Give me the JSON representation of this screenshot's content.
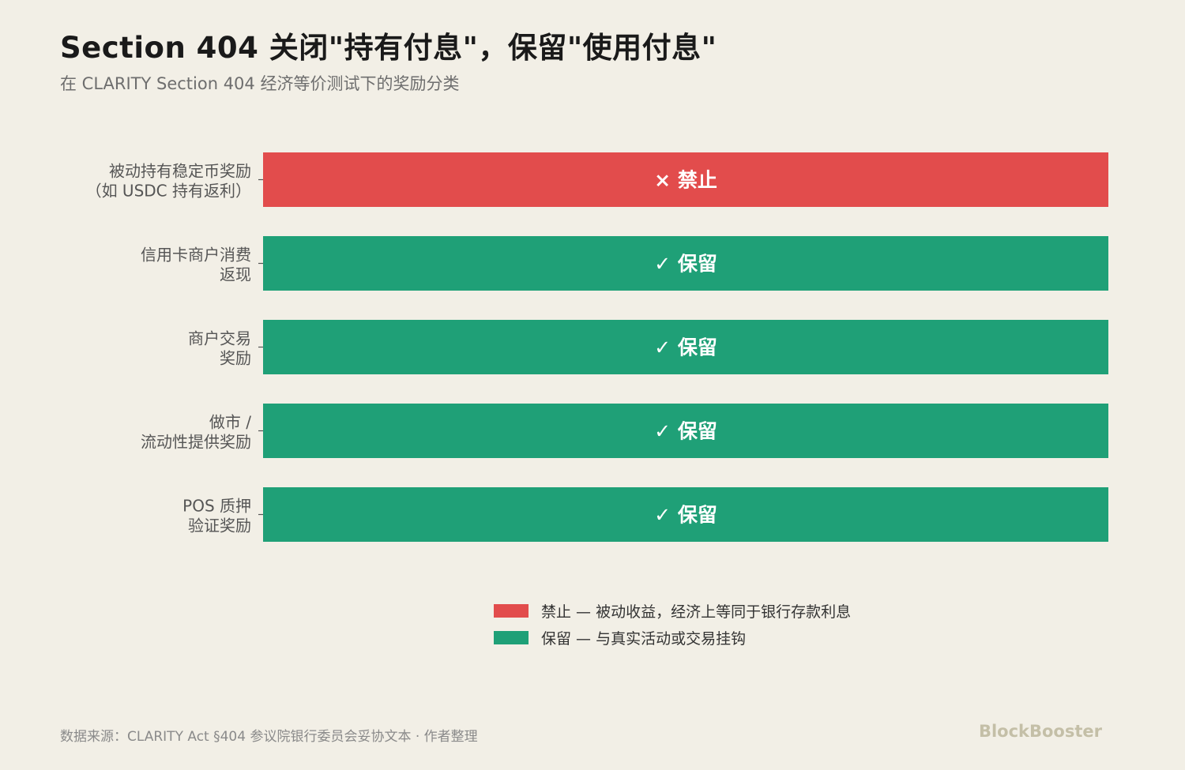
{
  "header": {
    "title": "Section 404 关闭\"持有付息\"，保留\"使用付息\"",
    "subtitle": "在 CLARITY Section 404 经济等价测试下的奖励分类"
  },
  "chart_data": {
    "type": "bar",
    "orientation": "horizontal",
    "categories": [
      [
        "被动持有稳定币奖励",
        "（如 USDC 持有返利）"
      ],
      [
        "信用卡商户消费",
        "返现"
      ],
      [
        "商户交易",
        "奖励"
      ],
      [
        "做市 /",
        "流动性提供奖励"
      ],
      [
        "POS 质押",
        "验证奖励"
      ]
    ],
    "status": [
      "banned",
      "kept"
    ],
    "values": [
      1,
      1,
      1,
      1,
      1
    ],
    "bar_status": [
      "banned",
      "kept",
      "kept",
      "kept",
      "kept"
    ],
    "bar_labels": [
      "× 禁止",
      "✓ 保留",
      "✓ 保留",
      "✓ 保留",
      "✓ 保留"
    ],
    "colors": {
      "banned": "#e24c4c",
      "kept": "#1fa077"
    },
    "legend": [
      {
        "status": "banned",
        "label": "禁止 — 被动收益，经济上等同于银行存款利息"
      },
      {
        "status": "kept",
        "label": "保留 — 与真实活动或交易挂钩"
      }
    ],
    "legend_position": "bottom-center",
    "grid": false
  },
  "footer": {
    "source": "数据来源：CLARITY Act §404 参议院银行委员会妥协文本 · 作者整理",
    "brand": "BlockBooster"
  }
}
